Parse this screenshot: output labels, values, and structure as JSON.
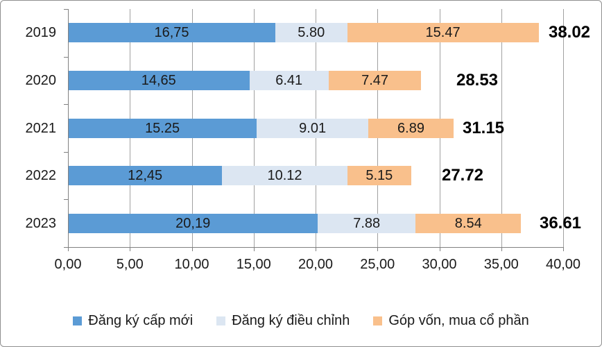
{
  "chart_data": {
    "type": "bar",
    "orientation": "horizontal",
    "stacked": true,
    "title": "",
    "categories": [
      "2019",
      "2020",
      "2021",
      "2022",
      "2023"
    ],
    "series": [
      {
        "name": "Đăng ký cấp mới",
        "color": "#5B9BD5",
        "values": [
          16.75,
          14.65,
          15.25,
          12.45,
          20.19
        ],
        "labels": [
          "16,75",
          "14,65",
          "15.25",
          "12,45",
          "20,19"
        ]
      },
      {
        "name": "Đăng ký điều chỉnh",
        "color": "#DCE6F2",
        "values": [
          5.8,
          6.41,
          9.01,
          10.12,
          7.88
        ],
        "labels": [
          "5.80",
          "6.41",
          "9.01",
          "10.12",
          "7.88"
        ]
      },
      {
        "name": "Góp vốn, mua cổ phần",
        "color": "#F9C08C",
        "values": [
          15.47,
          7.47,
          6.89,
          5.15,
          8.54
        ],
        "labels": [
          "15.47",
          "7.47",
          "6.89",
          "5.15",
          "8.54"
        ]
      }
    ],
    "totals": [
      "38.02",
      "28.53",
      "31.15",
      "27.72",
      "36.61"
    ],
    "x_ticks": [
      "0,00",
      "5,00",
      "10,00",
      "15,00",
      "20,00",
      "25,00",
      "30,00",
      "35,00",
      "40,00"
    ],
    "xlim": [
      0,
      40
    ],
    "grid": true,
    "legend_position": "bottom",
    "colors": {
      "grid": "#A0A0A0",
      "axis": "#808080",
      "label_text": "#1A1A1A",
      "total_text": "#000000"
    }
  }
}
